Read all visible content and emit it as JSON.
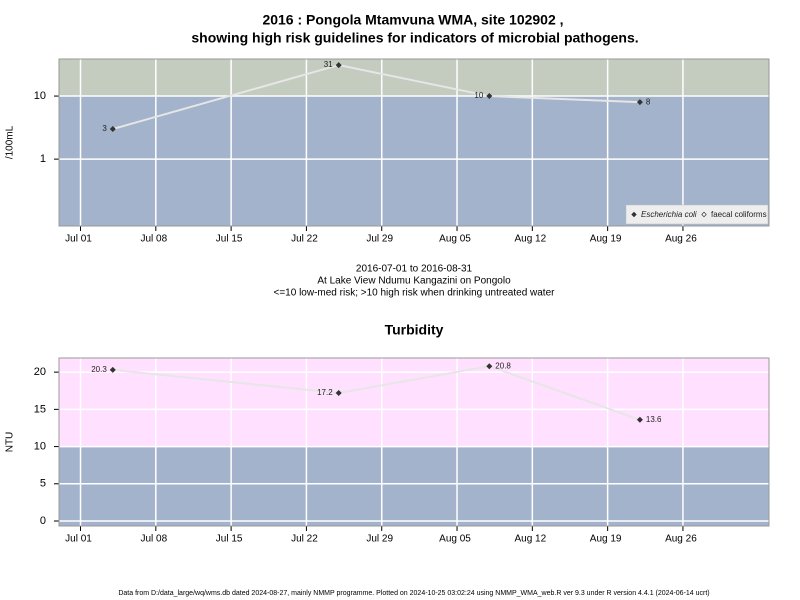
{
  "chart_data": [
    {
      "type": "line",
      "title": "2016 : Pongola Mtamvuna WMA, site 102902 ,",
      "subtitle": "showing high risk guidelines for indicators of microbial pathogens.",
      "ylabel": "/100mL",
      "log_scale": true,
      "x": [
        "2016-07-04",
        "2016-07-25",
        "2016-08-08",
        "2016-08-22"
      ],
      "series": [
        {
          "name": "Escherichia coli",
          "color": "#333333",
          "values": [
            3,
            31,
            10,
            8
          ]
        },
        {
          "name": "faecal coliforms",
          "color": "#333333",
          "values": [
            null,
            null,
            null,
            null
          ]
        }
      ],
      "xlim": [
        "2016-06-29",
        "2016-09-03"
      ],
      "xticks": [
        {
          "value": "2016-07-01",
          "label": "Jul 01"
        },
        {
          "value": "2016-07-08",
          "label": "Jul 08"
        },
        {
          "value": "2016-07-15",
          "label": "Jul 15"
        },
        {
          "value": "2016-07-22",
          "label": "Jul 22"
        },
        {
          "value": "2016-07-29",
          "label": "Jul 29"
        },
        {
          "value": "2016-08-05",
          "label": "Aug 05"
        },
        {
          "value": "2016-08-12",
          "label": "Aug 12"
        },
        {
          "value": "2016-08-19",
          "label": "Aug 19"
        },
        {
          "value": "2016-08-26",
          "label": "Aug 26"
        }
      ],
      "ylim": [
        0.087,
        38.7
      ],
      "yticks": [
        1,
        10
      ],
      "threshold": 10,
      "band_colors": {
        "below": "#a3b3cb",
        "above": "#c4ccc0"
      },
      "line_color": "#e6e6e6",
      "grid": true,
      "legend": "bottom-right",
      "caption": [
        "2016-07-01 to 2016-08-31",
        "At Lake View Ndumu Kangazini on Pongolo",
        "<=10 low-med risk; >10 high risk when drinking untreated water"
      ]
    },
    {
      "type": "line",
      "title": "Turbidity",
      "ylabel": "NTU",
      "log_scale": false,
      "x": [
        "2016-07-04",
        "2016-07-25",
        "2016-08-08",
        "2016-08-22"
      ],
      "series": [
        {
          "name": "Turbidity",
          "color": "#333333",
          "values": [
            20.3,
            17.2,
            20.8,
            13.6
          ]
        }
      ],
      "xlim": [
        "2016-06-29",
        "2016-09-03"
      ],
      "xticks": [
        {
          "value": "2016-07-01",
          "label": "Jul 01"
        },
        {
          "value": "2016-07-08",
          "label": "Jul 08"
        },
        {
          "value": "2016-07-15",
          "label": "Jul 15"
        },
        {
          "value": "2016-07-22",
          "label": "Jul 22"
        },
        {
          "value": "2016-07-29",
          "label": "Jul 29"
        },
        {
          "value": "2016-08-05",
          "label": "Aug 05"
        },
        {
          "value": "2016-08-12",
          "label": "Aug 12"
        },
        {
          "value": "2016-08-19",
          "label": "Aug 19"
        },
        {
          "value": "2016-08-26",
          "label": "Aug 26"
        }
      ],
      "ylim": [
        -0.67,
        21.9
      ],
      "yticks": [
        0,
        5,
        10,
        15,
        20
      ],
      "threshold": 10,
      "band_colors": {
        "below": "#a3b3cb",
        "above": "#ffe0ff"
      },
      "line_color": "#e6e6e6",
      "grid": true
    }
  ],
  "footer": "Data from D:/data_large/wq/wms.db dated 2024-08-27, mainly NMMP programme. Plotted on 2024-10-25 03:02:24 using NMMP_WMA_web.R ver 9.3 under R version 4.4.1 (2024-06-14 ucrt)"
}
